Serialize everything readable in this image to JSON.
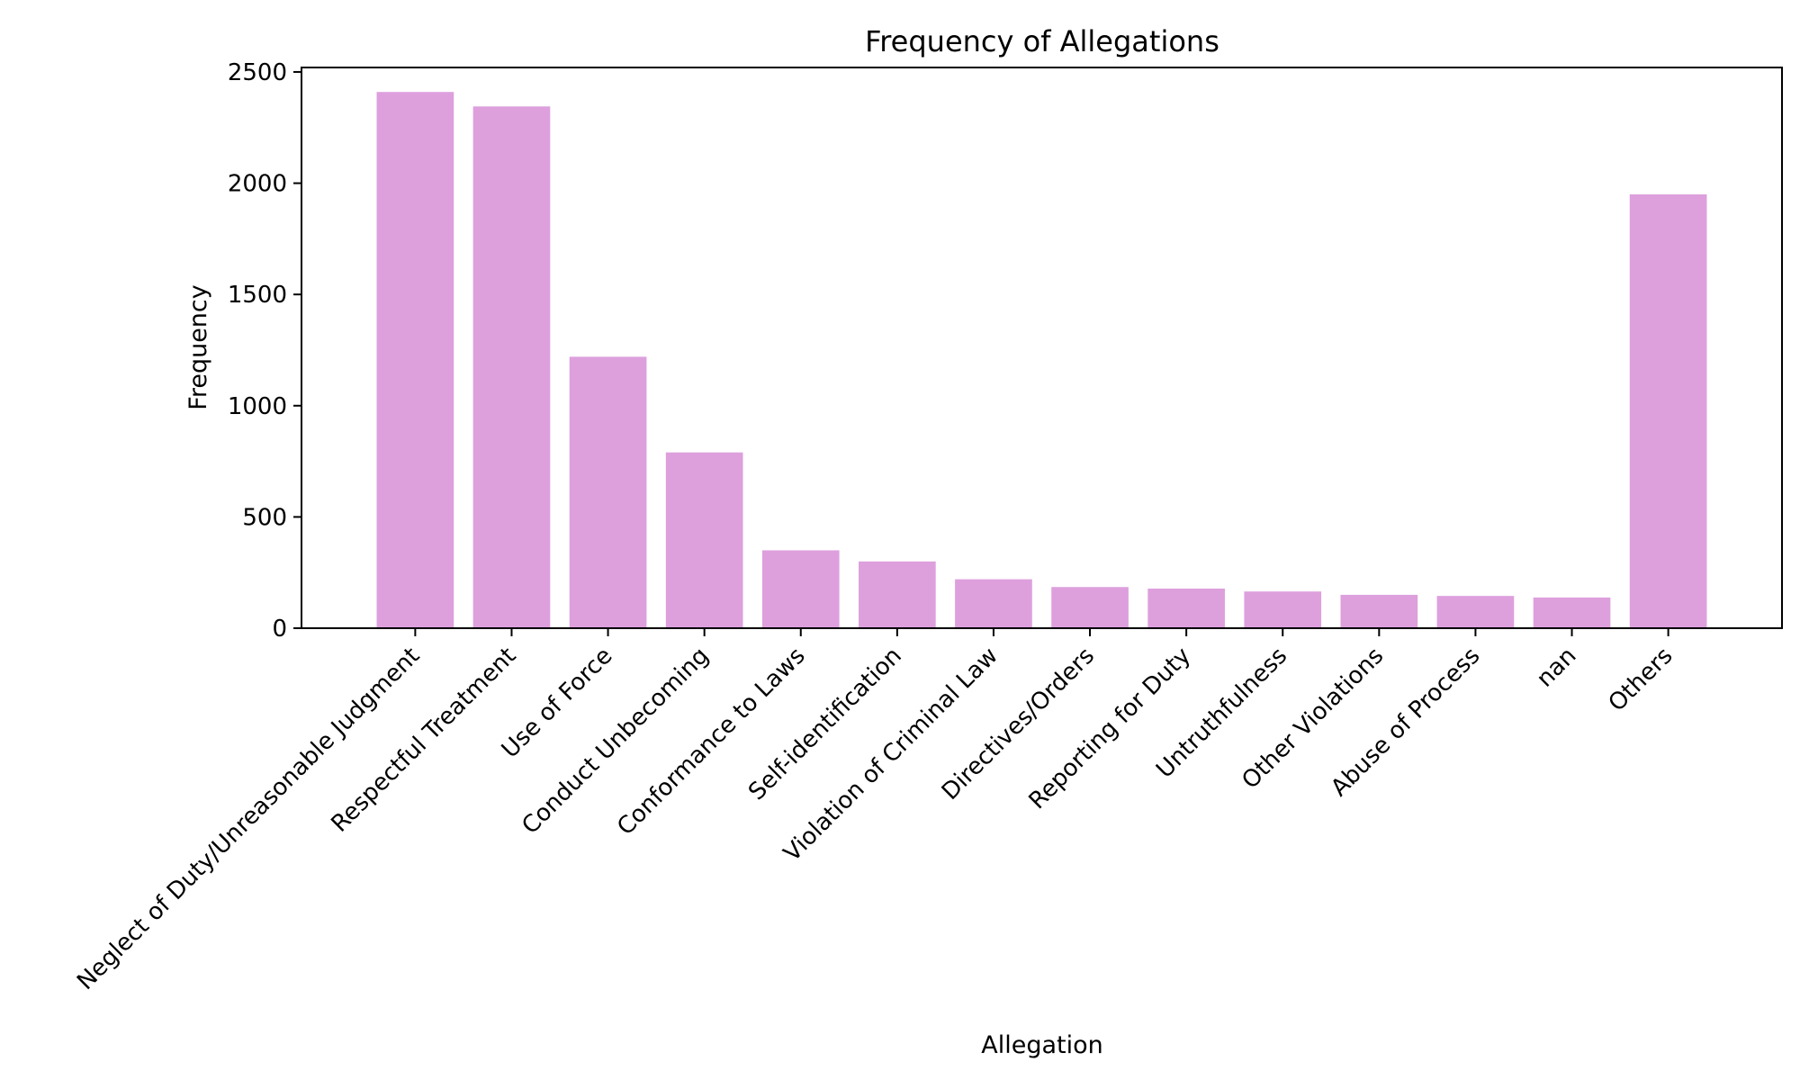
{
  "chart_data": {
    "type": "bar",
    "title": "Frequency of Allegations",
    "xlabel": "Allegation",
    "ylabel": "Frequency",
    "categories": [
      "Neglect of Duty/Unreasonable Judgment",
      "Respectful Treatment",
      "Use of Force",
      "Conduct Unbecoming",
      "Conformance to Laws",
      "Self-identification",
      "Violation of Criminal Law",
      "Directives/Orders",
      "Reporting for Duty",
      "Untruthfulness",
      "Other Violations",
      "Abuse of Process",
      "nan",
      "Others"
    ],
    "values": [
      2410,
      2345,
      1220,
      790,
      350,
      300,
      220,
      185,
      178,
      165,
      150,
      145,
      138,
      1950
    ],
    "ylim": [
      0,
      2520
    ],
    "yticks": [
      0,
      500,
      1000,
      1500,
      2000,
      2500
    ],
    "grid": false,
    "bar_color": "#dda0dd"
  }
}
